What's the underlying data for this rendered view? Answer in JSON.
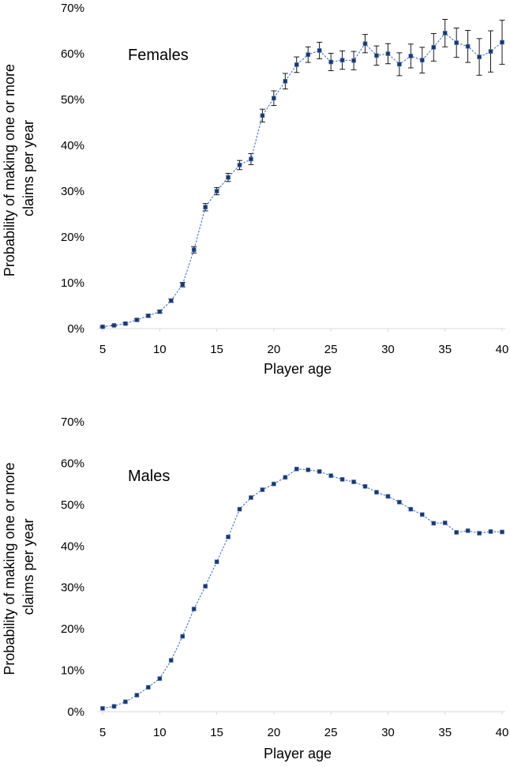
{
  "chart_data": [
    {
      "type": "line",
      "title": "Females",
      "xlabel": "Player age",
      "ylabel_lines": [
        "Probability of making one or more",
        "claims per year"
      ],
      "xlim": [
        5,
        40
      ],
      "ylim": [
        0,
        70
      ],
      "xticks": [
        "5",
        "10",
        "15",
        "20",
        "25",
        "30",
        "35",
        "40"
      ],
      "yticks": [
        "0%",
        "10%",
        "20%",
        "30%",
        "40%",
        "50%",
        "60%",
        "70%"
      ],
      "series": [
        {
          "name": "Females",
          "color": "#4472c4",
          "marker_color": "#1f3864",
          "x": [
            5,
            6,
            7,
            8,
            9,
            10,
            11,
            12,
            13,
            14,
            15,
            16,
            17,
            18,
            19,
            20,
            21,
            22,
            23,
            24,
            25,
            26,
            27,
            28,
            29,
            30,
            31,
            32,
            33,
            34,
            35,
            36,
            37,
            38,
            39,
            40
          ],
          "y": [
            0.4,
            0.7,
            1.1,
            1.9,
            2.8,
            3.7,
            6.1,
            9.6,
            17.2,
            26.5,
            30.0,
            33.0,
            35.7,
            37.0,
            46.5,
            50.3,
            54.0,
            57.6,
            59.8,
            60.7,
            58.2,
            58.6,
            58.5,
            62.2,
            59.6,
            60.0,
            57.7,
            59.5,
            58.6,
            61.4,
            64.5,
            62.4,
            61.6,
            59.3,
            60.5,
            62.5
          ],
          "err": [
            0.1,
            0.1,
            0.2,
            0.2,
            0.3,
            0.3,
            0.4,
            0.5,
            0.7,
            0.8,
            0.8,
            0.9,
            1.0,
            1.2,
            1.4,
            1.6,
            1.7,
            1.7,
            1.7,
            1.8,
            1.9,
            2.0,
            2.0,
            2.0,
            2.1,
            2.2,
            2.5,
            2.6,
            2.8,
            3.0,
            3.0,
            3.2,
            3.5,
            4.0,
            4.5,
            4.8
          ]
        }
      ]
    },
    {
      "type": "line",
      "title": "Males",
      "xlabel": "Player age",
      "ylabel_lines": [
        "Probability of making one or more",
        "claims per year"
      ],
      "xlim": [
        5,
        40
      ],
      "ylim": [
        0,
        70
      ],
      "xticks": [
        "5",
        "10",
        "15",
        "20",
        "25",
        "30",
        "35",
        "40"
      ],
      "yticks": [
        "0%",
        "10%",
        "20%",
        "30%",
        "40%",
        "50%",
        "60%",
        "70%"
      ],
      "series": [
        {
          "name": "Males",
          "color": "#4472c4",
          "marker_color": "#1f3864",
          "x": [
            5,
            6,
            7,
            8,
            9,
            10,
            11,
            12,
            13,
            14,
            15,
            16,
            17,
            18,
            19,
            20,
            21,
            22,
            23,
            24,
            25,
            26,
            27,
            28,
            29,
            30,
            31,
            32,
            33,
            34,
            35,
            36,
            37,
            38,
            39,
            40
          ],
          "y": [
            0.8,
            1.3,
            2.4,
            4.0,
            5.9,
            8.0,
            12.4,
            18.2,
            24.8,
            30.3,
            36.2,
            42.2,
            48.9,
            51.7,
            53.6,
            55.0,
            56.6,
            58.6,
            58.4,
            58.0,
            57.0,
            56.1,
            55.5,
            54.4,
            53.0,
            52.0,
            50.6,
            48.9,
            47.6,
            45.5,
            45.6,
            43.3,
            43.7,
            43.1,
            43.5,
            43.4
          ]
        }
      ]
    }
  ]
}
